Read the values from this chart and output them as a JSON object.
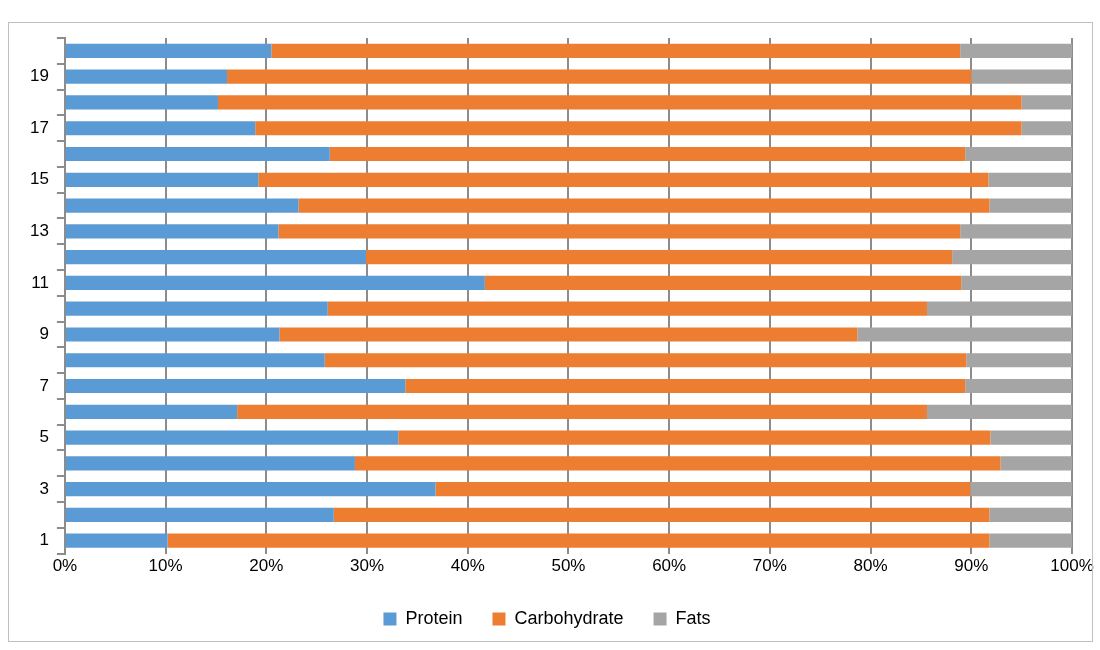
{
  "chart_data": {
    "type": "bar",
    "orientation": "horizontal",
    "stacked": true,
    "categories": [
      null,
      "19",
      null,
      "17",
      null,
      "15",
      null,
      "13",
      null,
      "11",
      null,
      "9",
      null,
      "7",
      null,
      "5",
      null,
      "3",
      null,
      "1"
    ],
    "series": [
      {
        "name": "Protein",
        "color": "#5b9bd5",
        "values": [
          20.5,
          16.1,
          15.2,
          18.9,
          26.3,
          19.2,
          23.2,
          21.2,
          29.9,
          41.7,
          26.1,
          21.3,
          25.8,
          33.8,
          17.1,
          33.1,
          28.8,
          36.8,
          26.7,
          10.2
        ]
      },
      {
        "name": "Carbohydrate",
        "color": "#ed7d31",
        "values": [
          68.4,
          73.9,
          79.8,
          76.1,
          63.1,
          72.5,
          68.6,
          67.7,
          58.2,
          47.3,
          59.5,
          57.4,
          63.7,
          55.6,
          68.5,
          58.8,
          64.1,
          53.1,
          65.1,
          81.6
        ]
      },
      {
        "name": "Fats",
        "color": "#a5a5a5",
        "values": [
          11.1,
          10.0,
          5.0,
          5.0,
          10.6,
          8.3,
          8.2,
          11.1,
          11.9,
          11.0,
          14.4,
          21.3,
          10.5,
          10.6,
          14.4,
          8.1,
          7.1,
          10.1,
          8.2,
          8.2
        ]
      }
    ],
    "xlim": [
      0,
      100
    ],
    "xticks": [
      {
        "value": 0,
        "label": "0%"
      },
      {
        "value": 10,
        "label": "10%"
      },
      {
        "value": 20,
        "label": "20%"
      },
      {
        "value": 30,
        "label": "30%"
      },
      {
        "value": 40,
        "label": "40%"
      },
      {
        "value": 50,
        "label": "50%"
      },
      {
        "value": 60,
        "label": "60%"
      },
      {
        "value": 70,
        "label": "70%"
      },
      {
        "value": 80,
        "label": "80%"
      },
      {
        "value": 90,
        "label": "90%"
      },
      {
        "value": 100,
        "label": "100%"
      }
    ],
    "grid": "x",
    "legend": "bottom"
  }
}
